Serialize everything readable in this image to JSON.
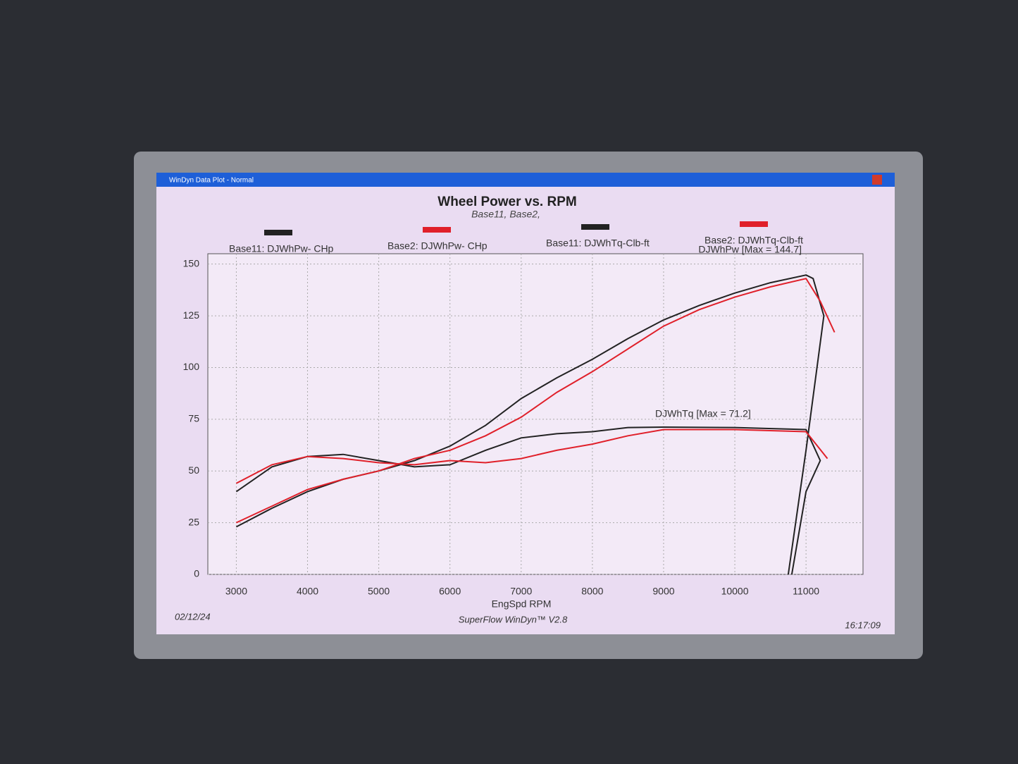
{
  "chart_data": {
    "type": "line",
    "window_title": "WinDyn Data Plot - Normal",
    "title": "Wheel Power vs. RPM",
    "subtitle": "Base11, Base2,",
    "x_label": "EngSpd  RPM",
    "annotations": [
      "DJWhPw [Max = 144.7]",
      "DJWhTq [Max = 71.2]"
    ],
    "footer": [
      "02/12/24",
      "SuperFlow WinDyn™ V2.8",
      "16:17:09"
    ],
    "xlim": [
      2600,
      11800
    ],
    "ylim": [
      0,
      155
    ],
    "xticks": [
      3000,
      4000,
      5000,
      6000,
      7000,
      8000,
      9000,
      10000,
      11000
    ],
    "yticks": [
      0,
      25,
      50,
      75,
      100,
      125,
      150
    ],
    "grid": true,
    "series": [
      {
        "name": "Base11: DJWhPw- CHp",
        "color": "#222222",
        "x": [
          3000,
          3500,
          4000,
          4500,
          5000,
          5500,
          6000,
          6500,
          7000,
          7500,
          8000,
          8500,
          9000,
          9500,
          10000,
          10500,
          11000,
          11100,
          11250,
          11000,
          10750
        ],
        "values": [
          23,
          32,
          40,
          46,
          50,
          55,
          62,
          72,
          85,
          95,
          104,
          114,
          123,
          130,
          136,
          141,
          144.7,
          143,
          125,
          60,
          0
        ]
      },
      {
        "name": "Base2: DJWhPw- CHp",
        "color": "#e0202a",
        "x": [
          3000,
          3500,
          4000,
          4500,
          5000,
          5500,
          6000,
          6500,
          7000,
          7500,
          8000,
          8500,
          9000,
          9500,
          10000,
          10500,
          11000,
          11200,
          11400
        ],
        "values": [
          25,
          33,
          41,
          46,
          50,
          56,
          60,
          67,
          76,
          88,
          98,
          109,
          120,
          128,
          134,
          139,
          143,
          132,
          117
        ]
      },
      {
        "name": "Base11: DJWhTq-Clb-ft",
        "color": "#222222",
        "x": [
          3000,
          3500,
          4000,
          4500,
          5000,
          5500,
          6000,
          6500,
          7000,
          7500,
          8000,
          8500,
          9000,
          10000,
          11000,
          11200,
          11000,
          10800
        ],
        "values": [
          40,
          52,
          57,
          58,
          55,
          52,
          53,
          60,
          66,
          68,
          69,
          71,
          71.2,
          71,
          70,
          55,
          40,
          0
        ]
      },
      {
        "name": "Base2: DJWhTq-Clb-ft",
        "color": "#e0202a",
        "x": [
          3000,
          3500,
          4000,
          4500,
          5000,
          5500,
          6000,
          6500,
          7000,
          7500,
          8000,
          8500,
          9000,
          10000,
          11000,
          11300
        ],
        "values": [
          44,
          53,
          57,
          56,
          54,
          53,
          55,
          54,
          56,
          60,
          63,
          67,
          70,
          70,
          69,
          56
        ]
      }
    ]
  }
}
